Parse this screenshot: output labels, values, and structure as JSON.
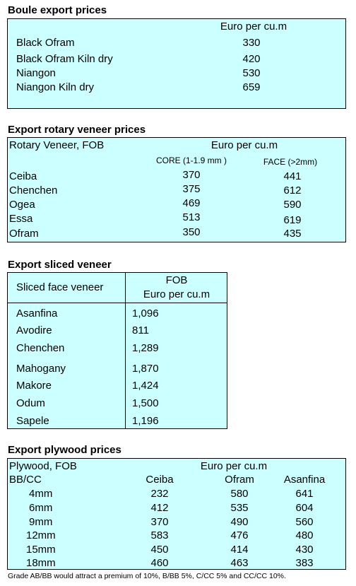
{
  "boule": {
    "title": "Boule export prices",
    "unit_header": "Euro per cu.m",
    "rows": [
      {
        "name": "Black Ofram",
        "value": "330"
      },
      {
        "name": "Black Ofram  Kiln dry",
        "value": "420"
      },
      {
        "name": "Niangon",
        "value": "530"
      },
      {
        "name": "Niangon Kiln dry",
        "value": "659"
      }
    ]
  },
  "rotary": {
    "title": "Export rotary veneer prices",
    "label_header": "Rotary Veneer,  FOB",
    "unit_header": "Euro  per cu.m",
    "col_core": "CORE (1-1.9 mm )",
    "col_face": "FACE (>2mm)",
    "rows": [
      {
        "name": "Ceiba",
        "core": "370",
        "face": "441"
      },
      {
        "name": "Chenchen",
        "core": "375",
        "face": "612"
      },
      {
        "name": "Ogea",
        "core": "469",
        "face": "590"
      },
      {
        "name": "Essa",
        "core": "513",
        "face": "619"
      },
      {
        "name": "Ofram",
        "core": "350",
        "face": "435"
      }
    ]
  },
  "sliced": {
    "title": "Export sliced veneer",
    "label_header": "Sliced face veneer",
    "fob_header": "FOB",
    "unit_header": "Euro per cu.m",
    "rows": [
      {
        "name": "Asanfina",
        "value": "1,096"
      },
      {
        "name": "Avodire",
        "value": "811"
      },
      {
        "name": "Chenchen",
        "value": "1,289"
      },
      {
        "name": "Mahogany",
        "value": "1,870"
      },
      {
        "name": "Makore",
        "value": "1,424"
      },
      {
        "name": "Odum",
        "value": "1,500"
      },
      {
        "name": "Sapele",
        "value": "1,196"
      }
    ]
  },
  "plywood": {
    "title": "Export plywood prices",
    "label_header": "Plywood, FOB",
    "unit_header": "Euro per cu.m",
    "grade_header": "BB/CC",
    "col_ceiba": "Ceiba",
    "col_ofram": "Ofram",
    "col_asanfina": "Asanfina",
    "rows": [
      {
        "thickness": "4mm",
        "ceiba": "232",
        "ofram": "580",
        "asanfina": "641"
      },
      {
        "thickness": "6mm",
        "ceiba": "412",
        "ofram": "535",
        "asanfina": "604"
      },
      {
        "thickness": "9mm",
        "ceiba": "370",
        "ofram": "490",
        "asanfina": "560"
      },
      {
        "thickness": "12mm",
        "ceiba": "583",
        "ofram": "476",
        "asanfina": "480"
      },
      {
        "thickness": "15mm",
        "ceiba": "450",
        "ofram": "414",
        "asanfina": "430"
      },
      {
        "thickness": "18mm",
        "ceiba": "460",
        "ofram": "463",
        "asanfina": "383"
      }
    ],
    "footnote": "Grade AB/BB would attract a premium of 10%, B/BB 5%, C/CC 5% and CC/CC 10%."
  }
}
